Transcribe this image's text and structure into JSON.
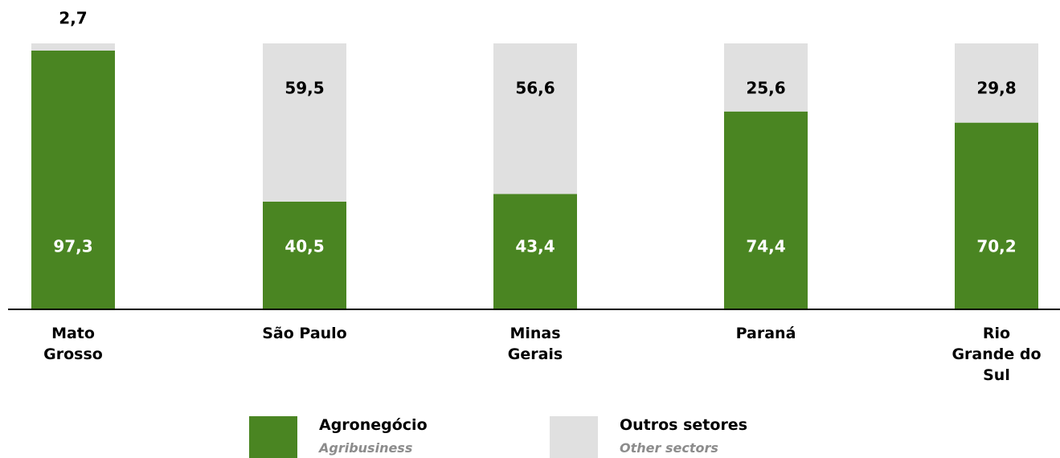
{
  "chart_data": {
    "type": "stacked_bar",
    "categories": [
      "Mato\nGrosso",
      "São Paulo",
      "Minas\nGerais",
      "Paraná",
      "Rio\nGrande do\nSul"
    ],
    "ylim": [
      0,
      100
    ],
    "series": [
      {
        "name": "Agronegócio",
        "translation": "Agribusiness",
        "color": "#4a8522",
        "values": [
          97.3,
          40.5,
          43.4,
          74.4,
          70.2
        ],
        "value_labels": [
          "97,3",
          "40,5",
          "43,4",
          "74,4",
          "70,2"
        ]
      },
      {
        "name": "Outros setores",
        "translation": "Other sectors",
        "color": "#e0e0e0",
        "values": [
          2.7,
          59.5,
          56.6,
          25.6,
          29.8
        ],
        "value_labels": [
          "2,7",
          "59,5",
          "56,6",
          "25,6",
          "29,8"
        ]
      }
    ]
  }
}
